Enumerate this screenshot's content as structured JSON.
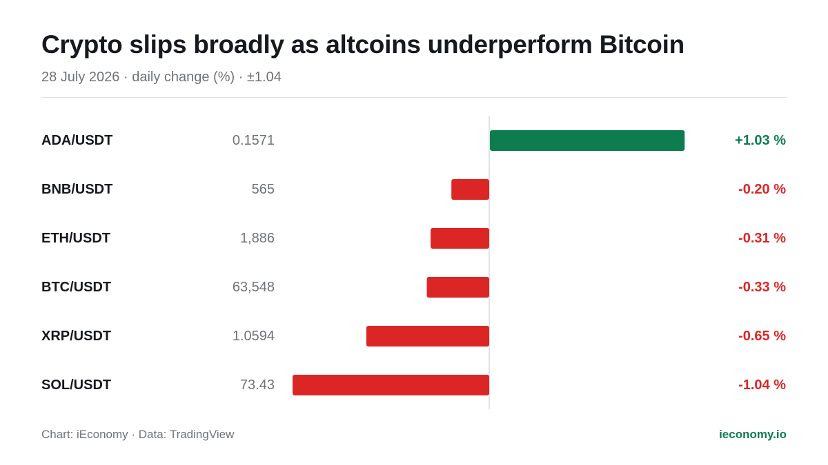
{
  "title": "Crypto slips broadly as altcoins underperform Bitcoin",
  "subtitle": "28 July 2026 · daily change (%) · ±1.04",
  "footer": {
    "credit": "Chart: iEconomy · Data: TradingView",
    "site": "ieconomy.io"
  },
  "colors": {
    "positive": "#0d7c4f",
    "negative": "#dc2626",
    "text": "#16191d",
    "muted": "#6e7378",
    "axis": "#d7dadd",
    "brand": "#0d7c4f"
  },
  "chart_data": {
    "type": "bar",
    "orientation": "horizontal",
    "domain": [
      -1.04,
      1.04
    ],
    "rows": [
      {
        "pair": "ADA/USDT",
        "price": "0.1571",
        "change": 1.03,
        "label": "+1.03 %"
      },
      {
        "pair": "BNB/USDT",
        "price": "565",
        "change": -0.2,
        "label": "-0.20 %"
      },
      {
        "pair": "ETH/USDT",
        "price": "1,886",
        "change": -0.31,
        "label": "-0.31 %"
      },
      {
        "pair": "BTC/USDT",
        "price": "63,548",
        "change": -0.33,
        "label": "-0.33 %"
      },
      {
        "pair": "XRP/USDT",
        "price": "1.0594",
        "change": -0.65,
        "label": "-0.65 %"
      },
      {
        "pair": "SOL/USDT",
        "price": "73.43",
        "change": -1.04,
        "label": "-1.04 %"
      }
    ]
  }
}
